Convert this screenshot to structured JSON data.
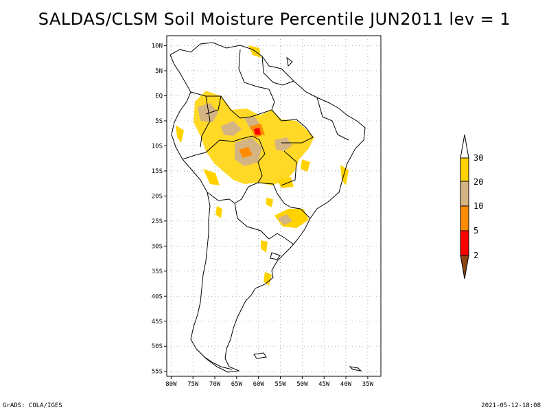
{
  "title": "SALDAS/CLSM Soil Moisture Percentile JUN2011 lev = 1",
  "map": {
    "lat_labels": [
      "10N",
      "5N",
      "EQ",
      "5S",
      "10S",
      "15S",
      "20S",
      "25S",
      "30S",
      "35S",
      "40S",
      "45S",
      "50S",
      "55S"
    ],
    "lon_labels": [
      "80W",
      "75W",
      "70W",
      "65W",
      "60W",
      "55W",
      "50W",
      "45W",
      "40W",
      "35W"
    ],
    "lat_range": [
      -56,
      12
    ],
    "lon_range": [
      -81,
      -32
    ],
    "grid": "dotted"
  },
  "legend": {
    "levels": [
      "30",
      "20",
      "10",
      "5",
      "2"
    ],
    "colors": {
      "above_30": "#ffffff",
      "c20_30": "#ffd200",
      "c10_20": "#d4b483",
      "c5_10": "#ff8c00",
      "c2_5": "#ff0000",
      "below_2": "#8b4513"
    }
  },
  "footer": {
    "left": "GrADS: COLA/IGES",
    "right": "2021-05-12-18:08"
  }
}
